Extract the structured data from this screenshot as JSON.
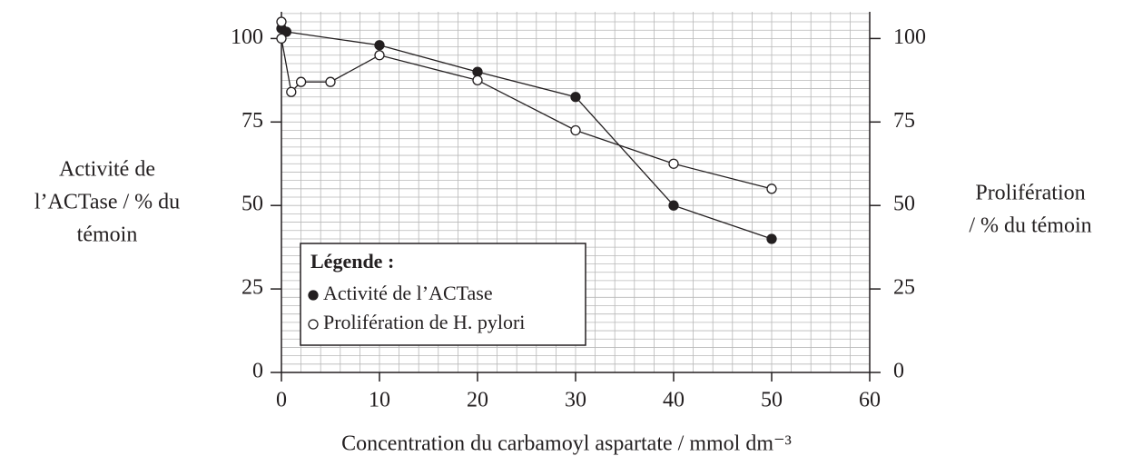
{
  "chart_data": {
    "type": "line",
    "x_label": "Concentration du carbamoyl aspartate / mmol dm⁻³",
    "y_label": [
      "Activité de",
      "l’ACTase / % du",
      "témoin"
    ],
    "y2_label": [
      "Prolifération",
      "/ % du témoin"
    ],
    "xlim": [
      0,
      60
    ],
    "xticks": [
      0,
      10,
      20,
      30,
      40,
      50,
      60
    ],
    "ylim": [
      0,
      108
    ],
    "yticks": [
      0,
      25,
      50,
      75,
      100
    ],
    "y2lim": [
      0,
      108
    ],
    "y2ticks": [
      0,
      25,
      50,
      75,
      100
    ],
    "grid": true,
    "legend_title": "Légende :",
    "series": [
      {
        "name": "Activité de l’ACTase",
        "color": "#231f20",
        "marker": "filled",
        "x": [
          0,
          0.5,
          10,
          20,
          30,
          40,
          50
        ],
        "values": [
          103,
          102,
          98,
          90,
          82.5,
          50,
          40
        ]
      },
      {
        "name": "Prolifération de H. pylori",
        "color": "#231f20",
        "marker": "open",
        "x": [
          0,
          0,
          1,
          2,
          5,
          10,
          20,
          30,
          40,
          50
        ],
        "values": [
          105,
          100,
          84,
          87,
          87,
          95,
          87.5,
          72.5,
          62.5,
          55
        ],
        "axis": "y2"
      }
    ]
  }
}
